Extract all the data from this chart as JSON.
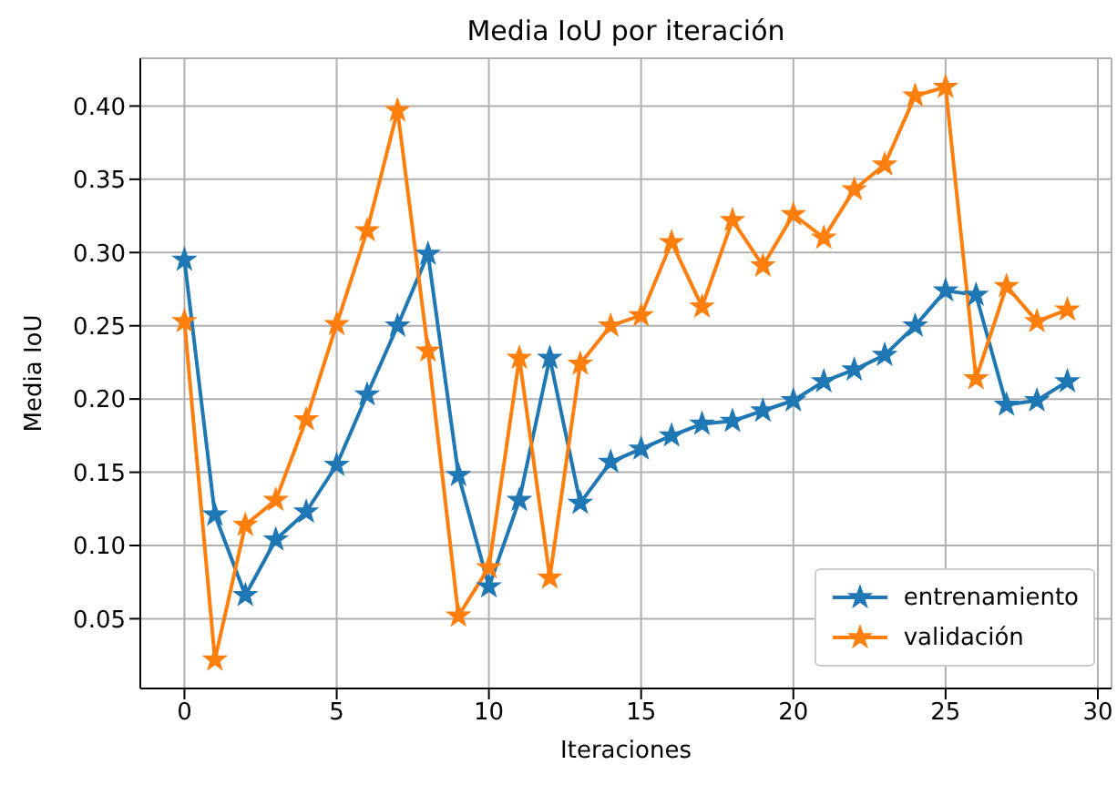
{
  "chart_data": {
    "type": "line",
    "title": "Media IoU por iteración",
    "xlabel": "Iteraciones",
    "ylabel": "Media IoU",
    "x": [
      0,
      1,
      2,
      3,
      4,
      5,
      6,
      7,
      8,
      9,
      10,
      11,
      12,
      13,
      14,
      15,
      16,
      17,
      18,
      19,
      20,
      21,
      22,
      23,
      24,
      25,
      26,
      27,
      28,
      29
    ],
    "series": [
      {
        "name": "entrenamiento",
        "color": "#1f77b4",
        "values": [
          0.295,
          0.121,
          0.066,
          0.104,
          0.123,
          0.155,
          0.203,
          0.25,
          0.299,
          0.148,
          0.072,
          0.131,
          0.228,
          0.129,
          0.157,
          0.166,
          0.175,
          0.183,
          0.185,
          0.192,
          0.199,
          0.212,
          0.22,
          0.23,
          0.25,
          0.274,
          0.271,
          0.196,
          0.199,
          0.212
        ]
      },
      {
        "name": "validación",
        "color": "#ff7f0e",
        "values": [
          0.253,
          0.022,
          0.114,
          0.131,
          0.186,
          0.251,
          0.315,
          0.397,
          0.233,
          0.052,
          0.085,
          0.228,
          0.078,
          0.224,
          0.25,
          0.257,
          0.307,
          0.263,
          0.322,
          0.291,
          0.326,
          0.31,
          0.343,
          0.36,
          0.407,
          0.413,
          0.214,
          0.277,
          0.253,
          0.261
        ]
      }
    ],
    "xlim": [
      -1.45,
      30.45
    ],
    "xticks": [
      0,
      5,
      10,
      15,
      20,
      25,
      30
    ],
    "ylim": [
      0.0024,
      0.4326
    ],
    "yticks": [
      {
        "value": 0.05,
        "label": "0.05"
      },
      {
        "value": 0.1,
        "label": "0.10"
      },
      {
        "value": 0.15,
        "label": "0.15"
      },
      {
        "value": 0.2,
        "label": "0.20"
      },
      {
        "value": 0.25,
        "label": "0.25"
      },
      {
        "value": 0.3,
        "label": "0.30"
      },
      {
        "value": 0.35,
        "label": "0.35"
      },
      {
        "value": 0.4,
        "label": "0.40"
      }
    ],
    "grid": true,
    "legend": "bottom right",
    "marker": "star",
    "line_style": "solid"
  }
}
